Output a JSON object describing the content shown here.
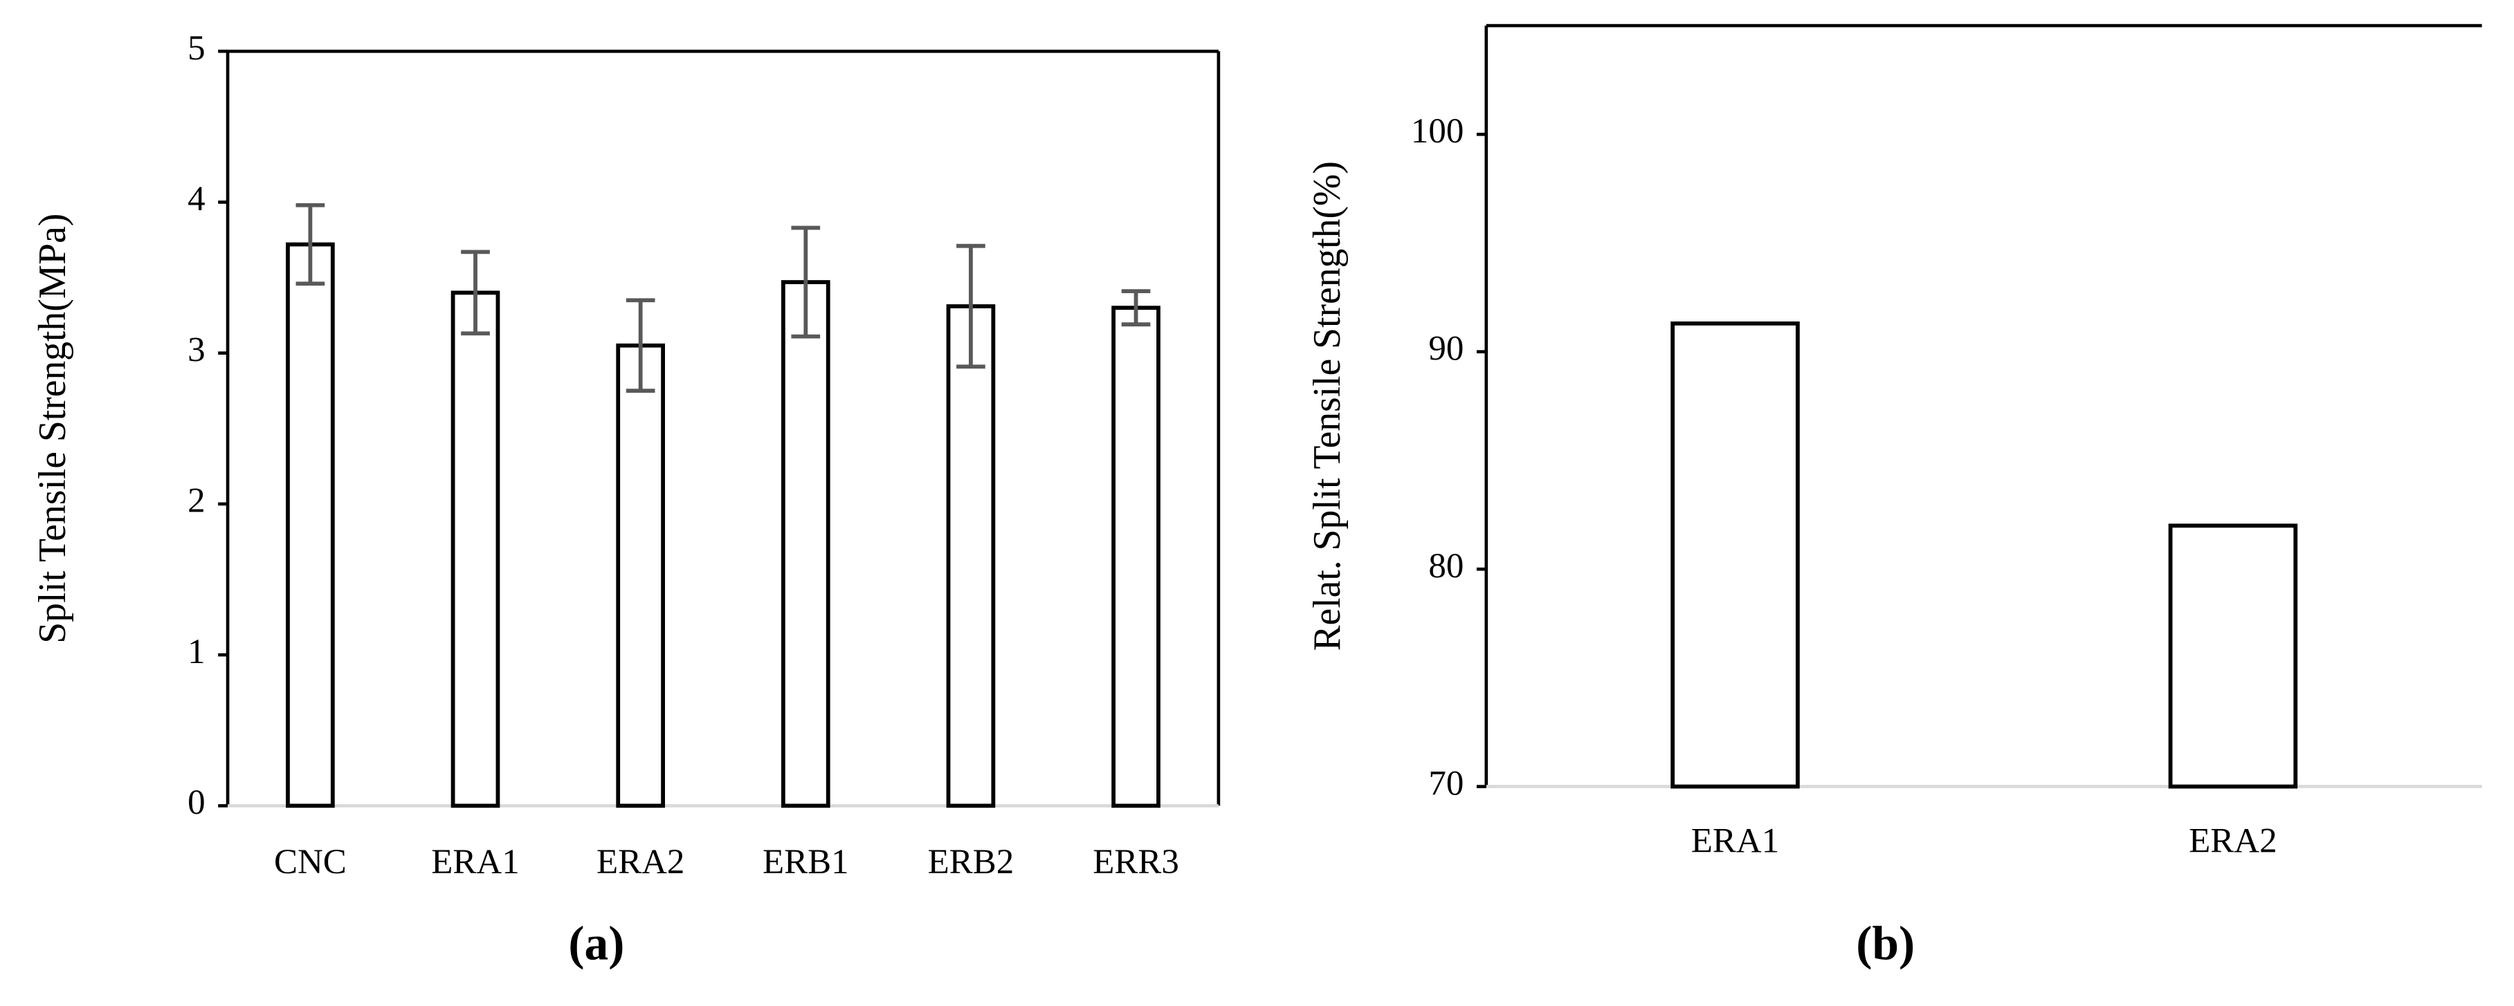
{
  "chart_data": [
    {
      "type": "bar",
      "caption": "(a)",
      "y_label": "Split Tensile Strength(MPa)",
      "categories": [
        "CNC",
        "ERA1",
        "ERA2",
        "ERB1",
        "ERB2",
        "ERR3"
      ],
      "values": [
        3.72,
        3.4,
        3.05,
        3.47,
        3.31,
        3.3
      ],
      "errors": [
        0.26,
        0.27,
        0.3,
        0.36,
        0.4,
        0.11
      ],
      "color": "#ffffff",
      "error_color": "#595959",
      "ylim": [
        0,
        5
      ],
      "yticks": [
        0,
        1,
        2,
        3,
        4,
        5
      ],
      "grid": false
    },
    {
      "type": "bar",
      "caption": "(b)",
      "y_label": "Relat. Split Tensile Strength(%)",
      "categories": [
        "ERA1",
        "ERA2"
      ],
      "values": [
        91.3,
        82.0
      ],
      "color": "#ffffff",
      "ylim": [
        70,
        105
      ],
      "yticks": [
        70,
        80,
        90,
        100
      ],
      "grid": false
    }
  ]
}
